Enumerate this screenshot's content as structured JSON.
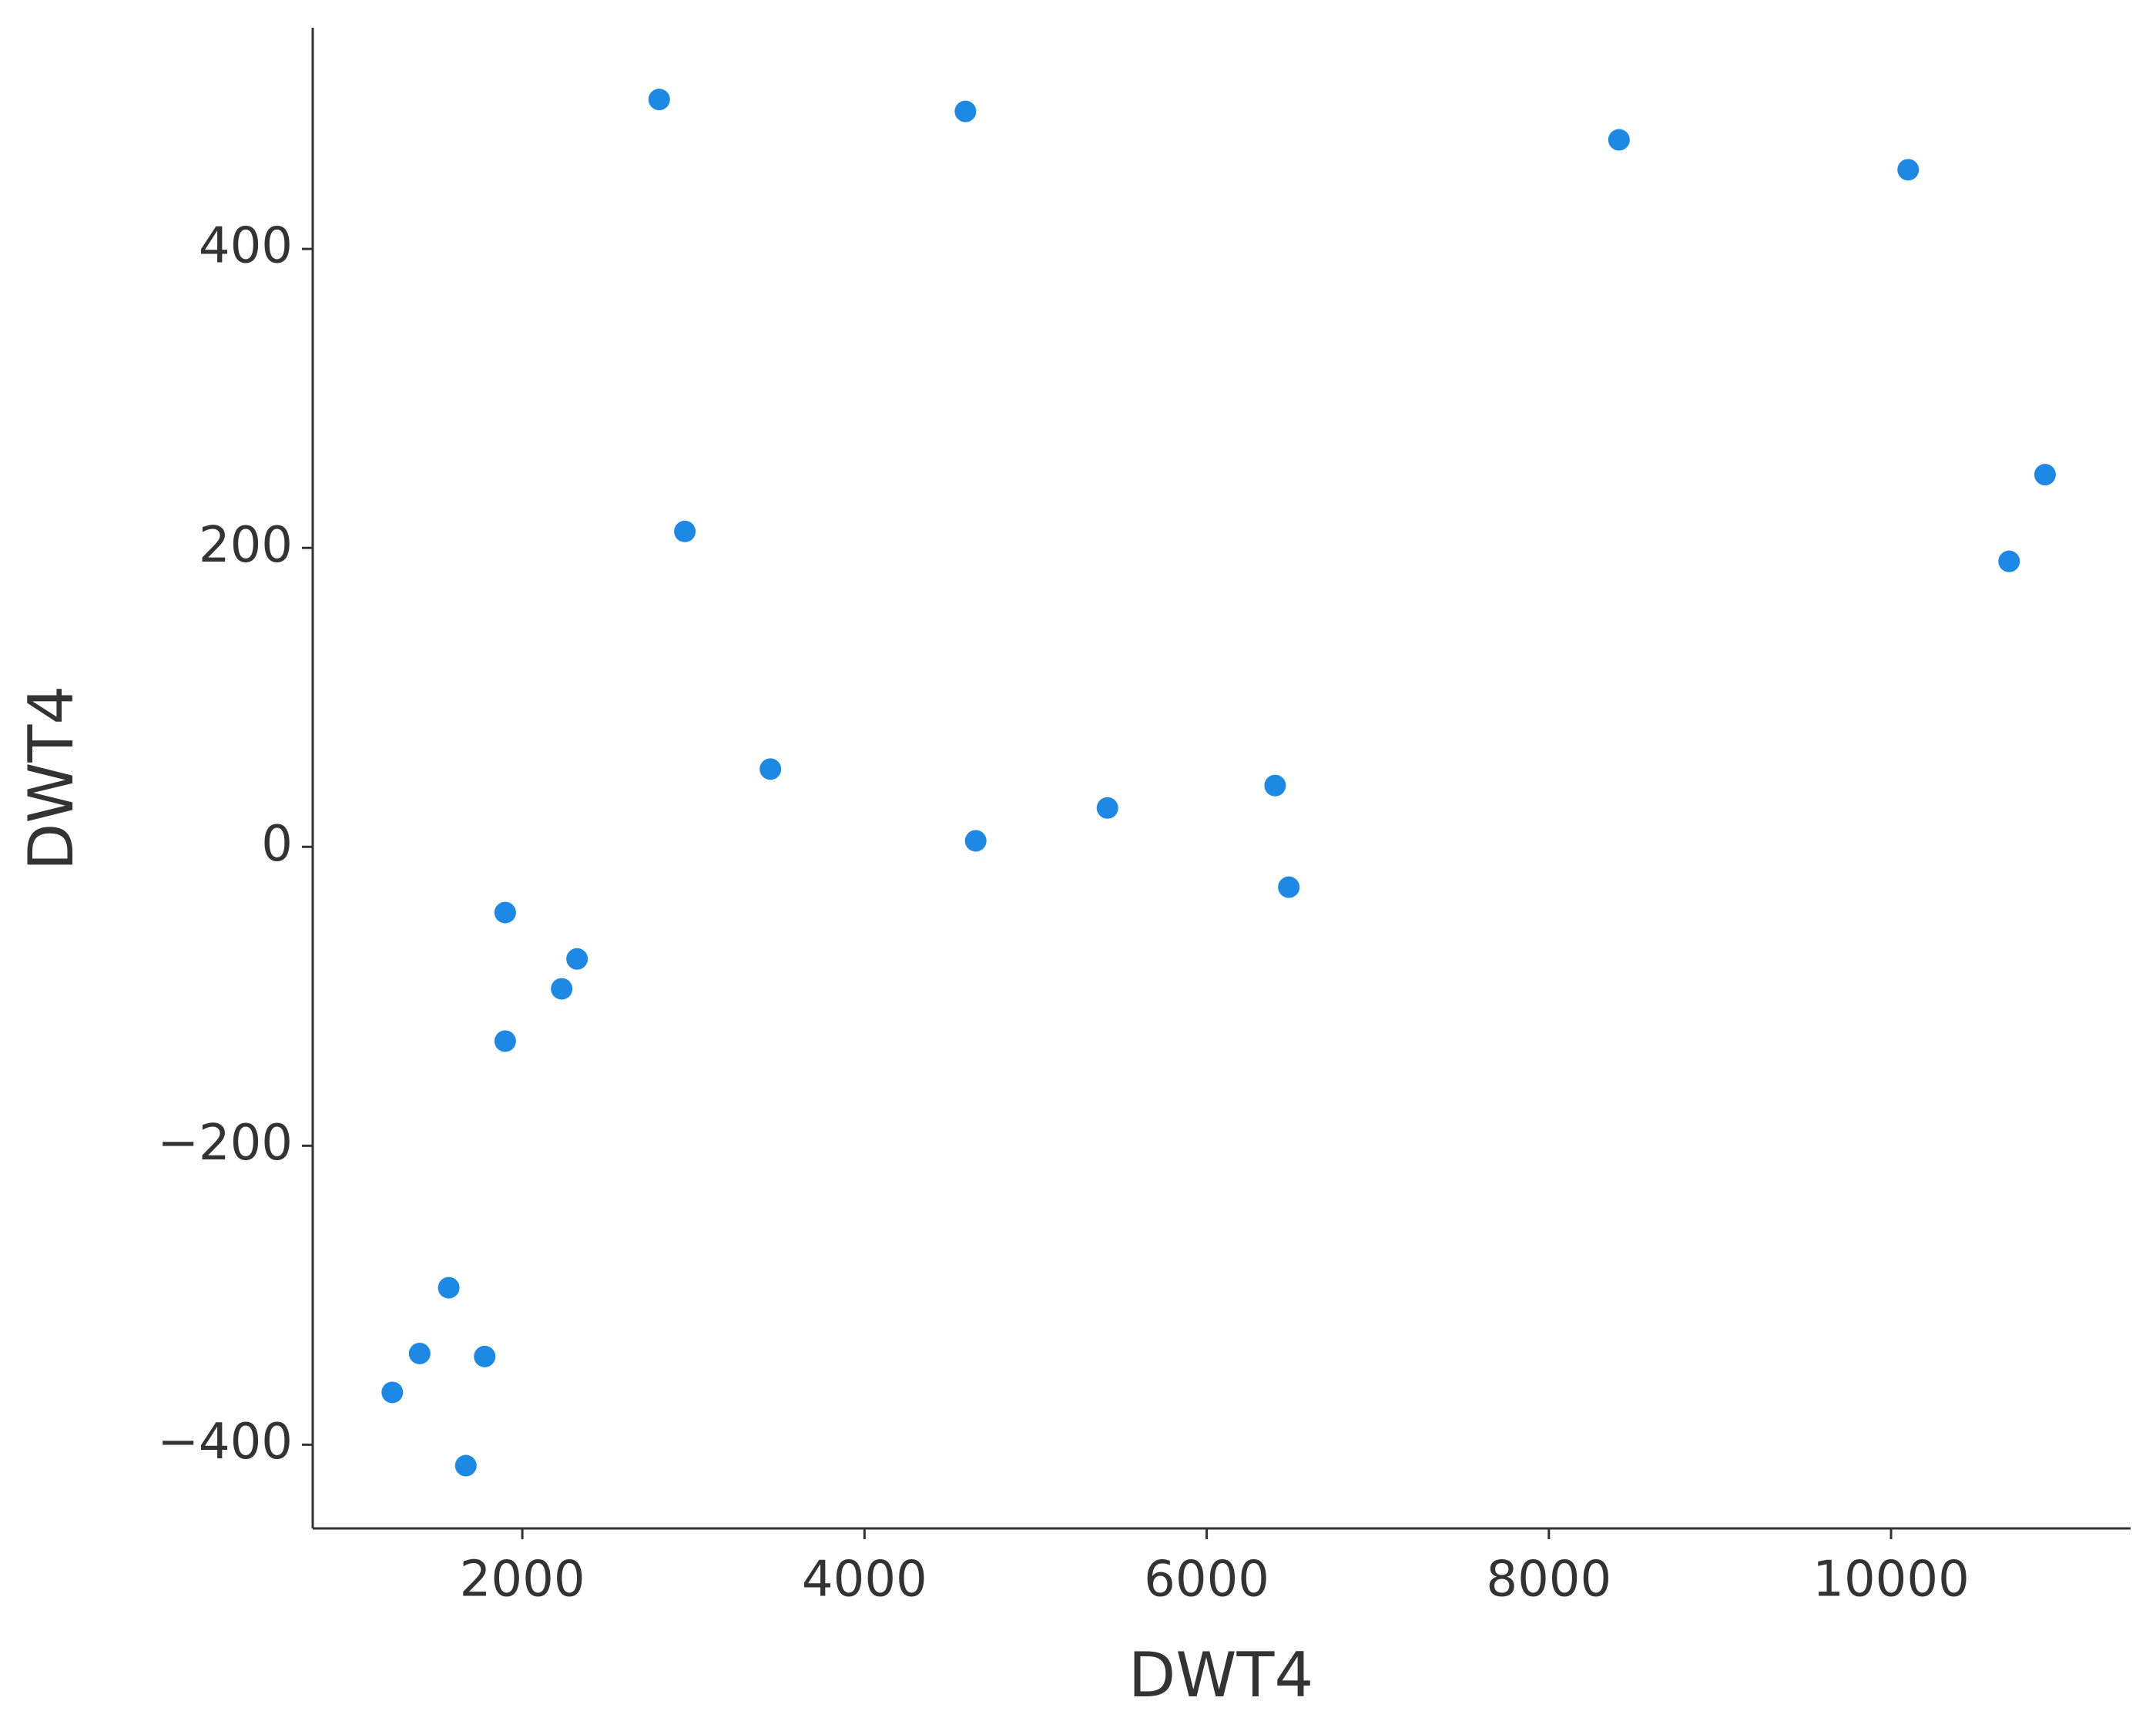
{
  "chart_data": {
    "type": "scatter",
    "x_label": "DWT4",
    "y_label": "DWT4",
    "x": [
      2800,
      4590,
      8410,
      10100,
      10900,
      10690,
      2950,
      3450,
      6400,
      5420,
      4650,
      6480,
      1900,
      2320,
      2230,
      1900,
      1570,
      1400,
      1780,
      1240,
      1670
    ],
    "y": [
      500,
      492,
      473,
      453,
      249,
      191,
      211,
      52,
      41,
      26,
      4,
      -27,
      -44,
      -75,
      -95,
      -130,
      -295,
      -339,
      -341,
      -365,
      -414
    ],
    "color": "#1e88e5",
    "xlim": [
      775,
      11400
    ],
    "ylim": [
      -456,
      548
    ],
    "xticks": [
      2000,
      4000,
      6000,
      8000,
      10000
    ],
    "yticks": [
      {
        "value": -400,
        "label": "−400"
      },
      {
        "value": -200,
        "label": "−200"
      },
      0,
      200,
      400
    ],
    "grid": false
  }
}
